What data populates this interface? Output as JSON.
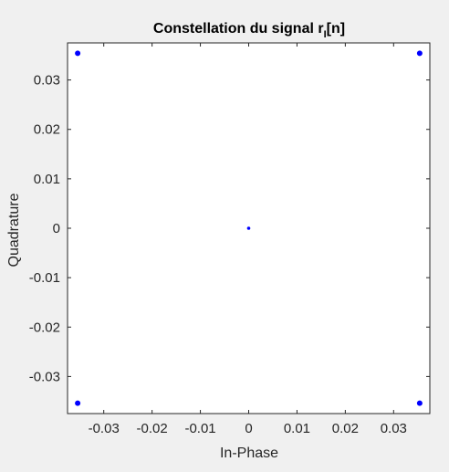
{
  "chart_data": {
    "type": "scatter",
    "title": {
      "main": "Constellation du signal r",
      "subscript": "I",
      "suffix": "[n]"
    },
    "xlabel": "In-Phase",
    "ylabel": "Quadrature",
    "xlim": [
      -0.0375,
      0.0375
    ],
    "ylim": [
      -0.0375,
      0.0375
    ],
    "xticks": [
      -0.03,
      -0.02,
      -0.01,
      0,
      0.01,
      0.02,
      0.03
    ],
    "xtick_labels": [
      "-0.03",
      "-0.02",
      "-0.01",
      "0",
      "0.01",
      "0.02",
      "0.03"
    ],
    "yticks": [
      -0.03,
      -0.02,
      -0.01,
      0,
      0.01,
      0.02,
      0.03
    ],
    "ytick_labels": [
      "-0.03",
      "-0.02",
      "-0.01",
      "0",
      "0.01",
      "0.02",
      "0.03"
    ],
    "grid": false,
    "marker_color": "#0000ff",
    "points": [
      {
        "x": -0.0354,
        "y": 0.0354
      },
      {
        "x": 0.0354,
        "y": 0.0354
      },
      {
        "x": -0.0354,
        "y": -0.0354
      },
      {
        "x": 0.0354,
        "y": -0.0354
      },
      {
        "x": 0.0,
        "y": 0.0
      }
    ]
  }
}
